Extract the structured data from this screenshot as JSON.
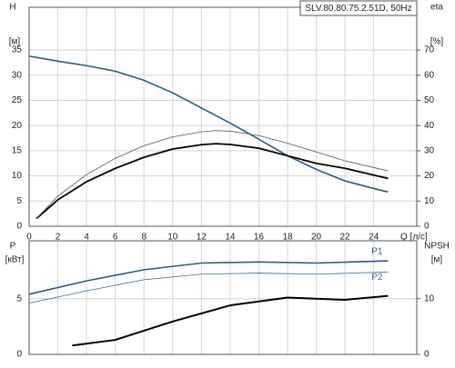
{
  "chart_data": [
    {
      "type": "line",
      "title": "SLV.80.80.75.2.51D, 50Hz",
      "xlabel": "Q [л/с]",
      "ylabel": "H",
      "yunit": "[м]",
      "y2label": "eta",
      "y2unit": "[%]",
      "xlim": [
        0,
        27
      ],
      "xticks": [
        0,
        2,
        4,
        6,
        8,
        10,
        12,
        14,
        16,
        18,
        20,
        22,
        24
      ],
      "ylim": [
        0,
        43.5
      ],
      "yticks": [
        0,
        5,
        10,
        15,
        20,
        25,
        30,
        35
      ],
      "y2lim": [
        0,
        87
      ],
      "y2ticks": [
        0,
        10,
        20,
        30,
        40,
        50,
        60,
        70
      ],
      "grid": true,
      "series": [
        {
          "color": "#2b5a8a",
          "line_width": 1.6,
          "x": [
            0,
            2,
            4,
            6,
            8,
            10,
            12,
            14,
            16,
            18,
            20,
            22,
            24,
            25
          ],
          "values": [
            33.8,
            32.8,
            31.9,
            30.8,
            29,
            26.5,
            23.5,
            20.5,
            17.3,
            14,
            11.3,
            9,
            7.5,
            6.8
          ]
        },
        {
          "color": "#000000",
          "line_width": 1.8,
          "axis": "y2",
          "x": [
            0.5,
            2,
            4,
            6,
            8,
            10,
            12,
            13,
            14,
            16,
            18,
            20,
            22,
            25
          ],
          "values": [
            3,
            10.5,
            17.7,
            23,
            27.4,
            30.7,
            32.4,
            32.8,
            32.5,
            31,
            28,
            25,
            23,
            19
          ]
        },
        {
          "color": "#555555",
          "line_width": 0.8,
          "axis": "y2",
          "x": [
            0.5,
            2,
            4,
            6,
            8,
            10,
            12,
            13,
            14,
            16,
            18,
            20,
            22,
            25
          ],
          "values": [
            3,
            12,
            20.5,
            27,
            32,
            35.5,
            37.5,
            38,
            37.8,
            36,
            33,
            29.5,
            26,
            22
          ]
        }
      ]
    },
    {
      "type": "line",
      "ylabel": "P",
      "yunit": "[кВт]",
      "y2label": "NPSH",
      "y2unit": "[м]",
      "xlim": [
        0,
        27
      ],
      "xticks": [
        0,
        2,
        4,
        6,
        8,
        10,
        12,
        14,
        16,
        18,
        20,
        22,
        24
      ],
      "ylim": [
        0,
        10.2
      ],
      "yticks": [
        0,
        5
      ],
      "y2lim": [
        0,
        20.4
      ],
      "y2ticks": [
        0,
        10
      ],
      "grid": true,
      "series": [
        {
          "name": "P1",
          "color": "#2b5a8a",
          "line_width": 1.6,
          "x": [
            0,
            4,
            8,
            12,
            16,
            20,
            25
          ],
          "values": [
            5.4,
            6.6,
            7.6,
            8.2,
            8.3,
            8.2,
            8.4
          ]
        },
        {
          "name": "P2",
          "color": "#3a6a9a",
          "line_width": 0.8,
          "x": [
            0,
            4,
            8,
            12,
            16,
            20,
            25
          ],
          "values": [
            4.6,
            5.7,
            6.7,
            7.2,
            7.3,
            7.2,
            7.4
          ]
        },
        {
          "color": "#000000",
          "line_width": 2,
          "axis": "y2",
          "x": [
            3,
            6,
            10,
            14,
            18,
            22,
            25
          ],
          "values": [
            1.6,
            2.6,
            5.9,
            8.8,
            10.2,
            9.8,
            10.5
          ]
        }
      ]
    }
  ]
}
